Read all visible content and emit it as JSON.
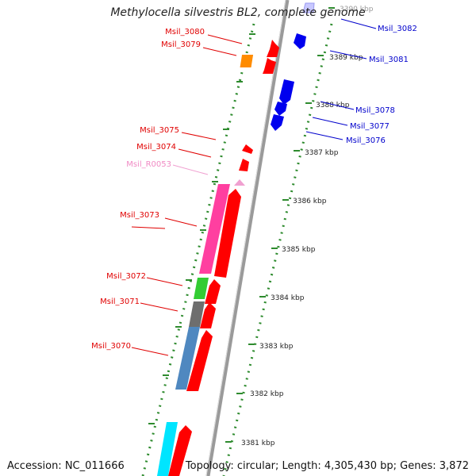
{
  "title": "Methylocella silvestris BL2, complete genome",
  "footer": {
    "accession": "Accession: NC_011666",
    "summary": "Topology: circular; Length: 4,305,430 bp; Genes: 3,872"
  },
  "colors": {
    "backbone": "#9a9a9a",
    "ruler_dots": "#2e8b2e",
    "forward_gene": "#ff0000",
    "reverse_gene": "#0000ee",
    "orange": "#ff8c00",
    "pink": "#ff3fa0",
    "rna_pink": "#f0a0d0",
    "green": "#33cc33",
    "gray": "#6e6e6e",
    "steel_blue": "#4f88c0",
    "cyan": "#00e5ff"
  },
  "ticks": [
    "3390 kbp",
    "3389 kbp",
    "3388 kbp",
    "3387 kbp",
    "3386 kbp",
    "3385 kbp",
    "3384 kbp",
    "3383 kbp",
    "3382 kbp",
    "3381 kbp"
  ],
  "left_labels": [
    "Msil_3080",
    "Msil_3079",
    "Msil_3075",
    "Msil_3074",
    "Msil_R0053",
    "Msil_3073",
    "Msil_3072",
    "Msil_3071",
    "Msil_3070"
  ],
  "right_labels": [
    "Msil_3082",
    "Msil_3081",
    "Msil_3078",
    "Msil_3077",
    "Msil_3076"
  ]
}
